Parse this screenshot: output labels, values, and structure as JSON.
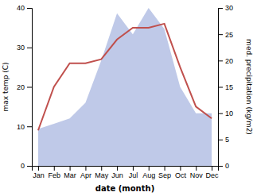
{
  "chart_data": {
    "type": "line",
    "categories": [
      "Jan",
      "Feb",
      "Mar",
      "Apr",
      "May",
      "Jun",
      "Jul",
      "Aug",
      "Sep",
      "Oct",
      "Nov",
      "Dec"
    ],
    "series": [
      {
        "type": "area",
        "axis": "y2",
        "color": "#bfc9e8",
        "values": [
          7,
          8,
          9,
          12,
          20,
          29,
          25,
          30,
          26,
          15,
          10,
          10
        ]
      },
      {
        "type": "line",
        "color": "#c0504d",
        "values": [
          9,
          20,
          26,
          26,
          27,
          32,
          35,
          35,
          36,
          25,
          15,
          12
        ]
      }
    ],
    "xlabel": "date (month)",
    "ylabel": "max temp (C)",
    "y2label": "med. precipitation (kg/m2)",
    "ylim": [
      0,
      40
    ],
    "yticks": [
      0,
      10,
      20,
      30,
      40
    ],
    "y2lim": [
      0,
      30
    ],
    "y2ticks": [
      0,
      5,
      10,
      15,
      20,
      25,
      30
    ],
    "grid": false
  }
}
